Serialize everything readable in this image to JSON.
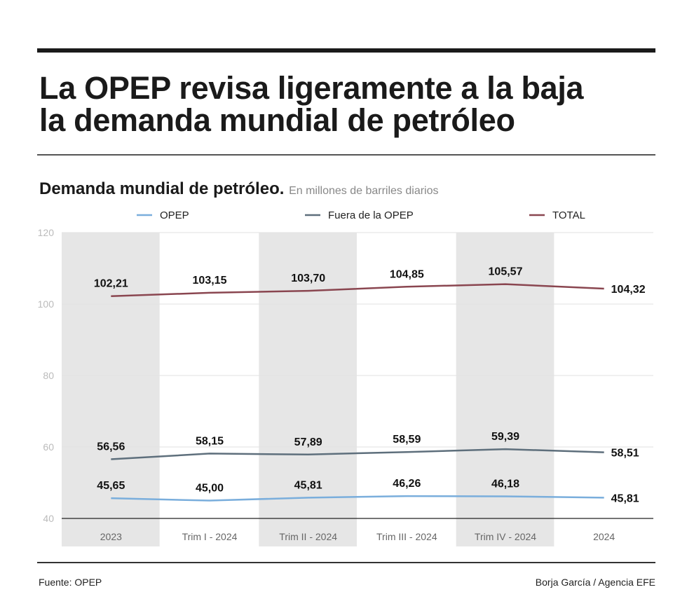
{
  "title_line1": "La OPEP revisa ligeramente a la baja",
  "title_line2": "la demanda mundial de petróleo",
  "source": "Fuente: OPEP",
  "credit": "Borja García / Agencia EFE",
  "chart_data": {
    "type": "line",
    "title": "Demanda mundial de petróleo.",
    "subtitle": "En millones de barriles diarios",
    "categories": [
      "2023",
      "Trim I - 2024",
      "Trim II - 2024",
      "Trim III - 2024",
      "Trim IV - 2024",
      "2024"
    ],
    "ylim": [
      40,
      120
    ],
    "yticks": [
      "40",
      "60",
      "80",
      "100",
      "120"
    ],
    "grid": true,
    "legend_position": "top",
    "series": [
      {
        "name": "OPEP",
        "color": "#7aaedc",
        "values": [
          45.65,
          45.0,
          45.81,
          46.26,
          46.18,
          45.81
        ],
        "labels": [
          "45,65",
          "45,00",
          "45,81",
          "46,26",
          "46,18",
          "45,81"
        ]
      },
      {
        "name": "Fuera de la OPEP",
        "color": "#5e6f7c",
        "values": [
          56.56,
          58.15,
          57.89,
          58.59,
          59.39,
          58.51
        ],
        "labels": [
          "56,56",
          "58,15",
          "57,89",
          "58,59",
          "59,39",
          "58,51"
        ]
      },
      {
        "name": "TOTAL",
        "color": "#8a4650",
        "values": [
          102.21,
          103.15,
          103.7,
          104.85,
          105.57,
          104.32
        ],
        "labels": [
          "102,21",
          "103,15",
          "103,70",
          "104,85",
          "105,57",
          "104,32"
        ]
      }
    ]
  }
}
